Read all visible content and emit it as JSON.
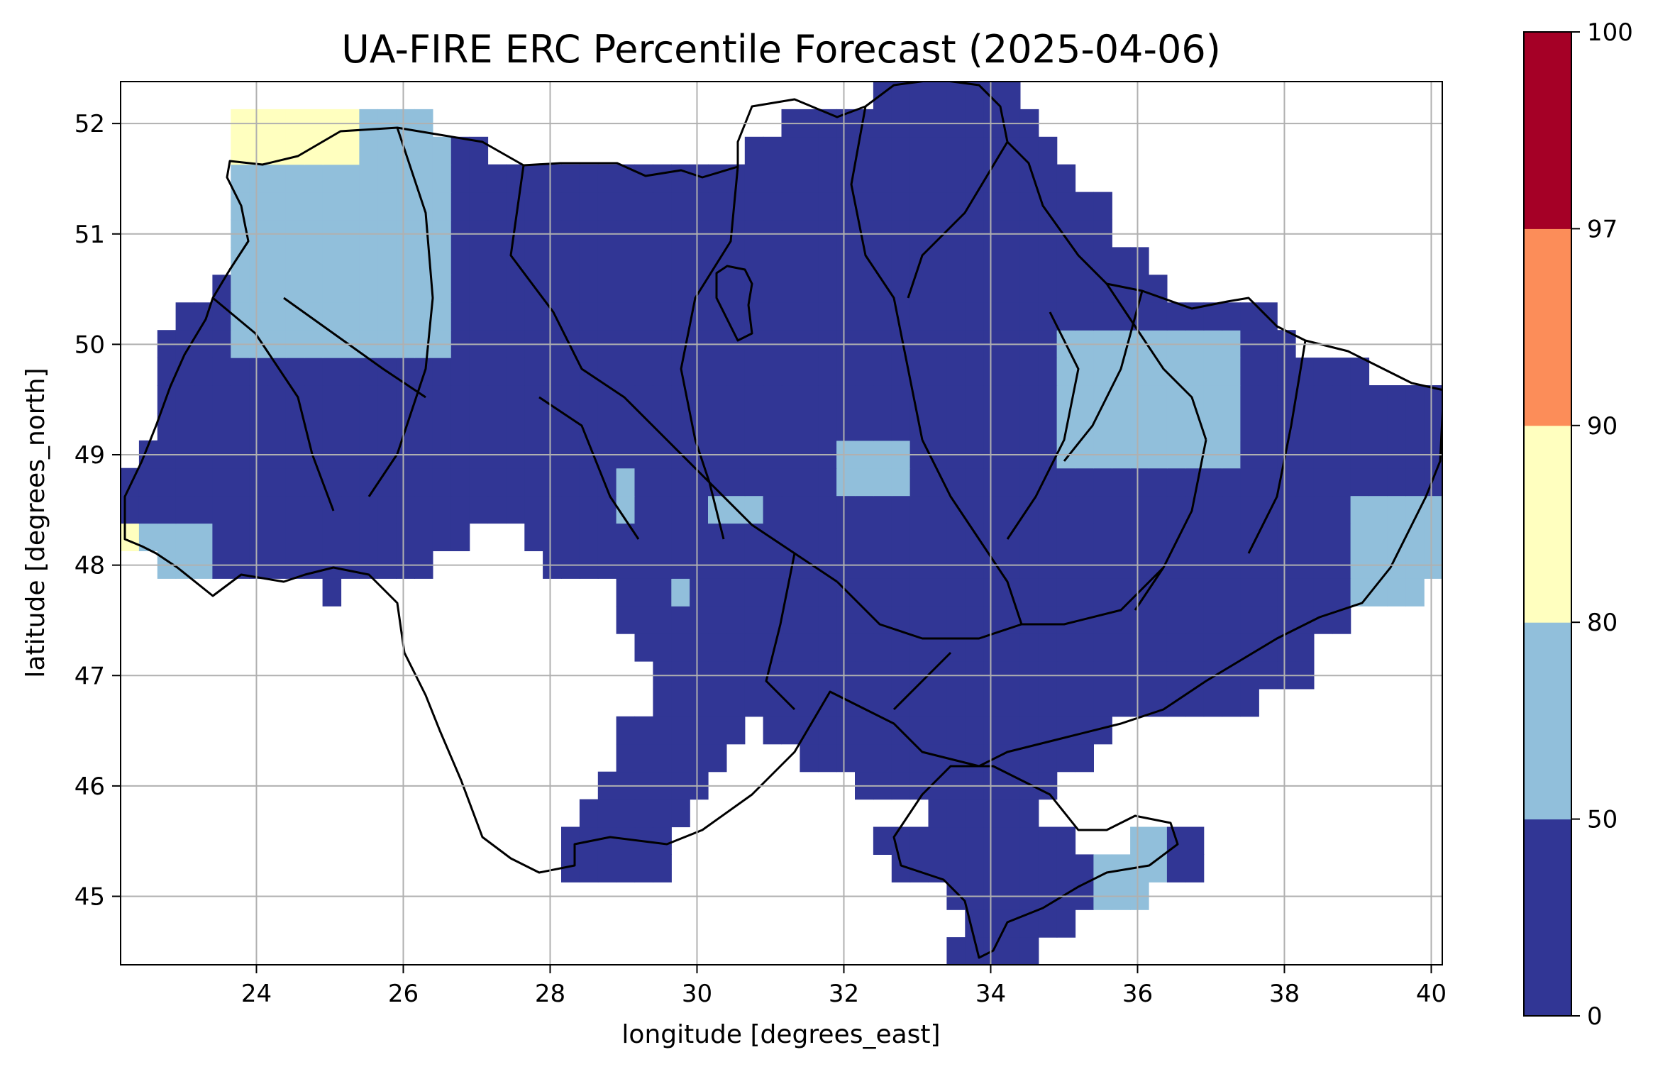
{
  "title": "UA-FIRE ERC Percentile Forecast (2025-04-06)",
  "chart_data": {
    "type": "heatmap",
    "title": "UA-FIRE ERC Percentile Forecast (2025-04-06)",
    "xlabel": "longitude [degrees_east]",
    "ylabel": "latitude [degrees_north]",
    "xlim": [
      22.15,
      40.15
    ],
    "ylim": [
      44.38,
      52.38
    ],
    "xticks": [
      24,
      26,
      28,
      30,
      32,
      34,
      36,
      38,
      40
    ],
    "yticks": [
      45,
      46,
      47,
      48,
      49,
      50,
      51,
      52
    ],
    "grid": true,
    "colorbar": {
      "boundaries": [
        0,
        50,
        80,
        90,
        97,
        100
      ],
      "tick_labels": [
        "0",
        "50",
        "80",
        "90",
        "97",
        "100"
      ],
      "colors": [
        "#313695",
        "#91bfdb",
        "#ffffbf",
        "#fc8d59",
        "#a50026"
      ]
    },
    "cell_size_deg": 0.25,
    "regions_by_percentile_band": {
      "0-50": "Most of Ukraine (central, southern, eastern, Crimea)",
      "50-80": [
        "North-west (Volyn/Rivne area, 23.5-26.5 E, 50-52 N)",
        "South-west (Zakarpattia, 22.5-23.5 E, ~48 N)",
        "Kharkiv area (35-37.5 E, 48.8-50.1 N)",
        "Luhansk/Donetsk east (38.9-40.1 E, 47.6-48.6 N)",
        "Central (31.8-32.8 E, 48.6-49.1 N)",
        "Eastern Crimea / Kerch (35.3-36.3 E, 44.6-45.6 N)"
      ],
      "80-90": [
        "Far north-west (23.5-25.2 E, 51.6-52.1 N)",
        "Far south-west (22.1-22.5 E, ~48.3 N)"
      ],
      "90-97": [],
      "97-100": []
    }
  }
}
